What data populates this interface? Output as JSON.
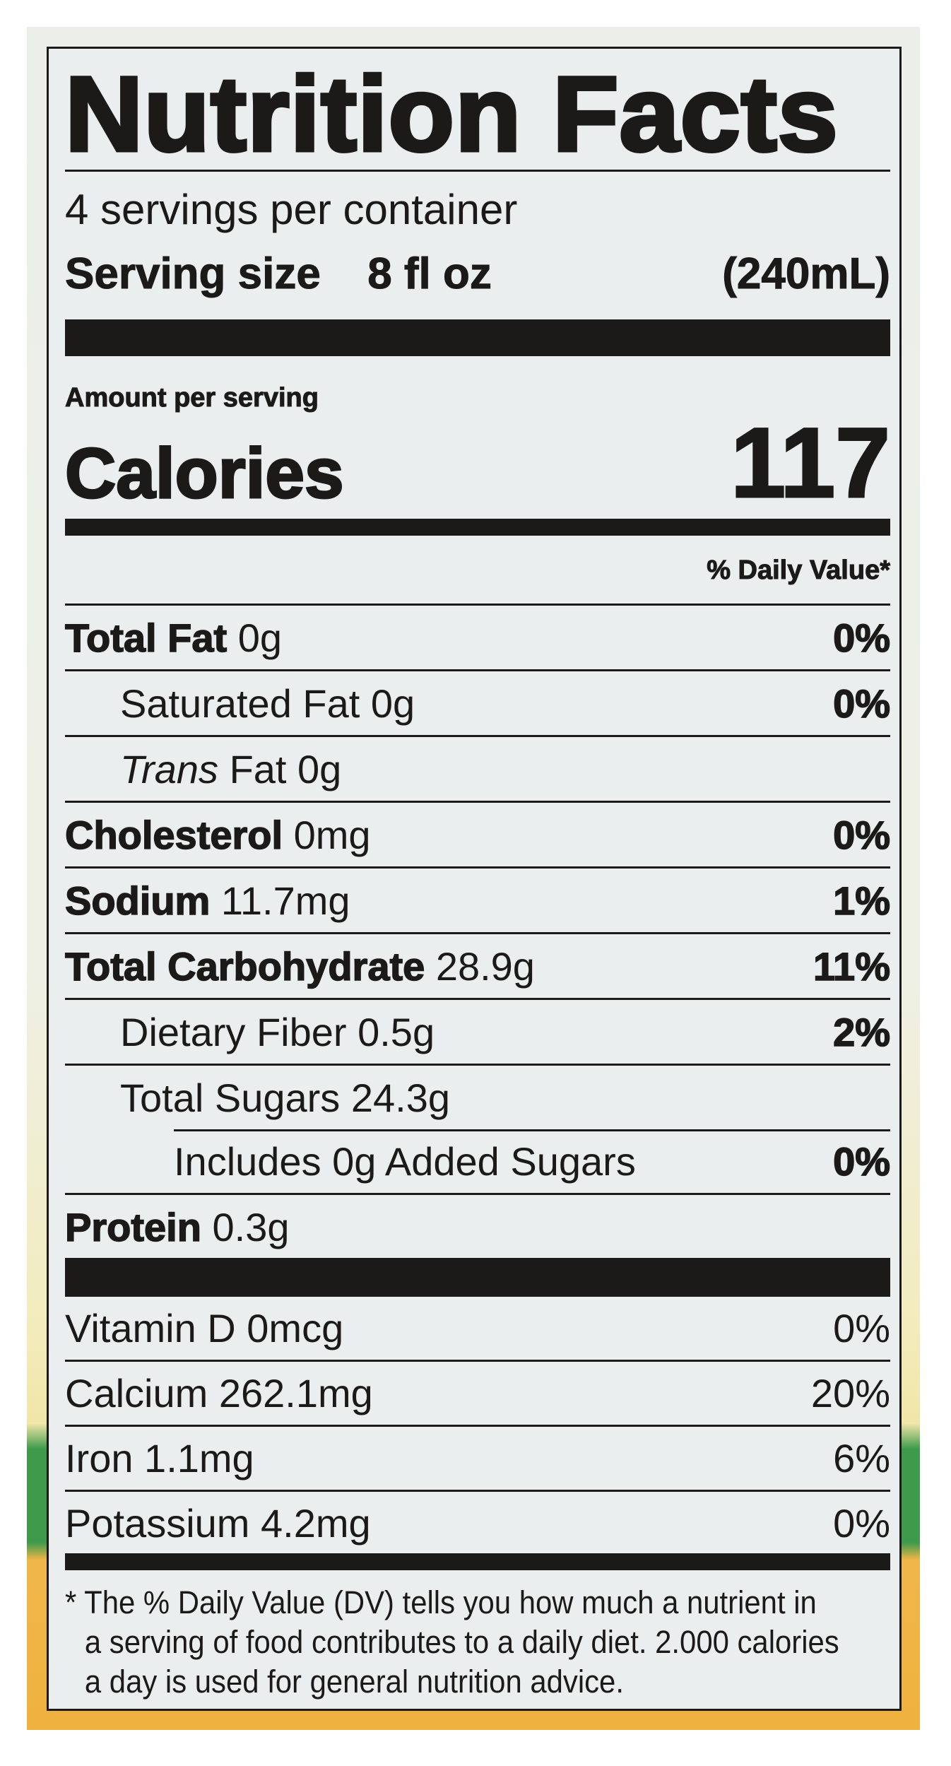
{
  "title": "Nutrition Facts",
  "servings_per_container": "4 servings per container",
  "serving_size": {
    "label": "Serving size",
    "amount": "8 fl oz",
    "metric": "(240mL)"
  },
  "amount_per_serving": "Amount per serving",
  "calories": {
    "label": "Calories",
    "value": "117"
  },
  "daily_value_header": "% Daily Value*",
  "nutrients": [
    {
      "name": "Total Fat",
      "amount": "0g",
      "dv": "0%"
    },
    {
      "name": "Saturated Fat",
      "amount": "0g",
      "dv": "0%"
    },
    {
      "name": "Trans",
      "suffix": "Fat 0g",
      "dv": ""
    },
    {
      "name": "Cholesterol",
      "amount": "0mg",
      "dv": "0%"
    },
    {
      "name": "Sodium",
      "amount": "11.7mg",
      "dv": "1%"
    },
    {
      "name": "Total Carbohydrate",
      "amount": "28.9g",
      "dv": "11%"
    },
    {
      "name": "Dietary Fiber",
      "amount": "0.5g",
      "dv": "2%"
    },
    {
      "name": "Total Sugars",
      "amount": "24.3g",
      "dv": ""
    },
    {
      "name": "Includes 0g Added Sugars",
      "amount": "",
      "dv": "0%"
    },
    {
      "name": "Protein",
      "amount": "0.3g",
      "dv": ""
    }
  ],
  "vitamins": [
    {
      "text": "Vitamin D 0mcg",
      "dv": "0%"
    },
    {
      "text": "Calcium 262.1mg",
      "dv": "20%"
    },
    {
      "text": "Iron 1.1mg",
      "dv": "6%"
    },
    {
      "text": "Potassium 4.2mg",
      "dv": "0%"
    }
  ],
  "footnote": "* The % Daily Value (DV) tells you how much a nutrient in a serving of food contributes to a daily diet. 2.000 calories a day is used for general nutrition advice.",
  "colors": {
    "ink": "#1c1a18",
    "label_bg": "#eaeeef",
    "package_green": "#3f9a4c",
    "package_orange": "#efb23e"
  }
}
